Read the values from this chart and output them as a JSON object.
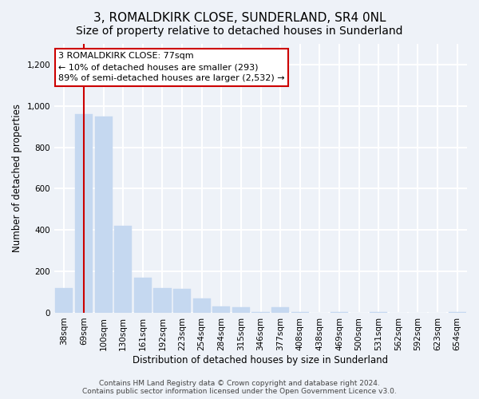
{
  "title": "3, ROMALDKIRK CLOSE, SUNDERLAND, SR4 0NL",
  "subtitle": "Size of property relative to detached houses in Sunderland",
  "xlabel": "Distribution of detached houses by size in Sunderland",
  "ylabel": "Number of detached properties",
  "categories": [
    "38sqm",
    "69sqm",
    "100sqm",
    "130sqm",
    "161sqm",
    "192sqm",
    "223sqm",
    "254sqm",
    "284sqm",
    "315sqm",
    "346sqm",
    "377sqm",
    "408sqm",
    "438sqm",
    "469sqm",
    "500sqm",
    "531sqm",
    "562sqm",
    "592sqm",
    "623sqm",
    "654sqm"
  ],
  "values": [
    120,
    960,
    950,
    420,
    170,
    120,
    115,
    70,
    30,
    25,
    5,
    25,
    5,
    0,
    5,
    0,
    5,
    0,
    0,
    0,
    5
  ],
  "bar_color": "#c5d8f0",
  "bar_edge_color": "#c5d8f0",
  "vline_x": 1.0,
  "vline_color": "#cc0000",
  "annotation_line1": "3 ROMALDKIRK CLOSE: 77sqm",
  "annotation_line2": "← 10% of detached houses are smaller (293)",
  "annotation_line3": "89% of semi-detached houses are larger (2,532) →",
  "annotation_box_color": "white",
  "annotation_box_edge_color": "#cc0000",
  "ylim": [
    0,
    1300
  ],
  "yticks": [
    0,
    200,
    400,
    600,
    800,
    1000,
    1200
  ],
  "footer": "Contains HM Land Registry data © Crown copyright and database right 2024.\nContains public sector information licensed under the Open Government Licence v3.0.",
  "bg_color": "#eef2f8",
  "plot_bg_color": "#eef2f8",
  "grid_color": "white",
  "title_fontsize": 11,
  "subtitle_fontsize": 10,
  "label_fontsize": 8.5,
  "tick_fontsize": 7.5,
  "annotation_fontsize": 8,
  "footer_fontsize": 6.5
}
